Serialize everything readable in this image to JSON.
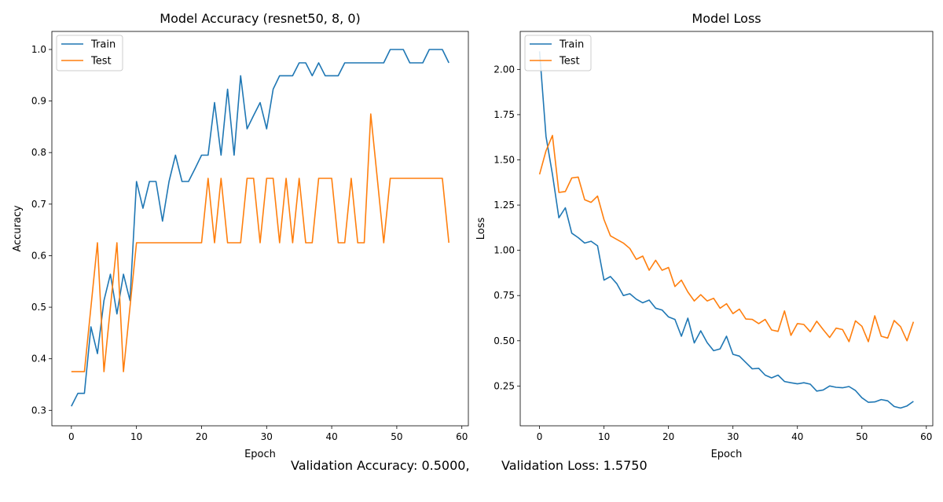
{
  "footer": {
    "val_acc": "Validation Accuracy: 0.5000,",
    "val_loss": "Validation Loss: 1.5750"
  },
  "chart_data": [
    {
      "type": "line",
      "title": "Model Accuracy (resnet50, 8, 0)",
      "xlabel": "Epoch",
      "ylabel": "Accuracy",
      "xlim": [
        -3,
        61
      ],
      "ylim": [
        0.27,
        1.035
      ],
      "xticks": [
        0,
        10,
        20,
        30,
        40,
        50,
        60
      ],
      "yticks": [
        0.3,
        0.4,
        0.5,
        0.6,
        0.7,
        0.8,
        0.9,
        1.0
      ],
      "ytick_labels": [
        "0.3",
        "0.4",
        "0.5",
        "0.6",
        "0.7",
        "0.8",
        "0.9",
        "1.0"
      ],
      "legend": "top-left",
      "grid": false,
      "series": [
        {
          "name": "Train",
          "color": "#1f77b4",
          "values": [
            0.308,
            0.333,
            0.333,
            0.462,
            0.41,
            0.513,
            0.564,
            0.487,
            0.564,
            0.513,
            0.744,
            0.692,
            0.744,
            0.744,
            0.667,
            0.744,
            0.795,
            0.744,
            0.744,
            0.769,
            0.795,
            0.795,
            0.897,
            0.795,
            0.923,
            0.795,
            0.949,
            0.846,
            0.872,
            0.897,
            0.846,
            0.923,
            0.949,
            0.949,
            0.949,
            0.974,
            0.974,
            0.949,
            0.974,
            0.949,
            0.949,
            0.949,
            0.974,
            0.974,
            0.974,
            0.974,
            0.974,
            0.974,
            0.974,
            1.0,
            1.0,
            1.0,
            0.974,
            0.974,
            0.974,
            1.0,
            1.0,
            1.0,
            0.974
          ]
        },
        {
          "name": "Test",
          "color": "#ff7f0e",
          "values": [
            0.375,
            0.375,
            0.375,
            0.5,
            0.625,
            0.375,
            0.5,
            0.625,
            0.375,
            0.5,
            0.625,
            0.625,
            0.625,
            0.625,
            0.625,
            0.625,
            0.625,
            0.625,
            0.625,
            0.625,
            0.625,
            0.75,
            0.625,
            0.75,
            0.625,
            0.625,
            0.625,
            0.75,
            0.75,
            0.625,
            0.75,
            0.75,
            0.625,
            0.75,
            0.625,
            0.75,
            0.625,
            0.625,
            0.75,
            0.75,
            0.75,
            0.625,
            0.625,
            0.75,
            0.625,
            0.625,
            0.875,
            0.75,
            0.625,
            0.75,
            0.75,
            0.75,
            0.75,
            0.75,
            0.75,
            0.75,
            0.75,
            0.75,
            0.625
          ]
        }
      ]
    },
    {
      "type": "line",
      "title": "Model Loss",
      "xlabel": "Epoch",
      "ylabel": "Loss",
      "xlim": [
        -3,
        61
      ],
      "ylim": [
        0.03,
        2.21
      ],
      "xticks": [
        0,
        10,
        20,
        30,
        40,
        50,
        60
      ],
      "yticks": [
        0.25,
        0.5,
        0.75,
        1.0,
        1.25,
        1.5,
        1.75,
        2.0
      ],
      "ytick_labels": [
        "0.25",
        "0.50",
        "0.75",
        "1.00",
        "1.25",
        "1.50",
        "1.75",
        "2.00"
      ],
      "legend": "top-left",
      "grid": false,
      "series": [
        {
          "name": "Train",
          "color": "#1f77b4",
          "values": [
            2.1,
            1.63,
            1.42,
            1.18,
            1.235,
            1.095,
            1.07,
            1.04,
            1.05,
            1.025,
            0.835,
            0.855,
            0.815,
            0.75,
            0.76,
            0.73,
            0.71,
            0.725,
            0.68,
            0.67,
            0.632,
            0.618,
            0.525,
            0.625,
            0.488,
            0.555,
            0.49,
            0.445,
            0.455,
            0.525,
            0.425,
            0.415,
            0.38,
            0.345,
            0.348,
            0.31,
            0.295,
            0.31,
            0.275,
            0.268,
            0.262,
            0.268,
            0.26,
            0.222,
            0.228,
            0.25,
            0.243,
            0.24,
            0.247,
            0.225,
            0.185,
            0.16,
            0.162,
            0.175,
            0.168,
            0.137,
            0.128,
            0.14,
            0.165
          ]
        },
        {
          "name": "Test",
          "color": "#ff7f0e",
          "values": [
            1.42,
            1.55,
            1.635,
            1.32,
            1.325,
            1.4,
            1.405,
            1.28,
            1.265,
            1.3,
            1.17,
            1.08,
            1.06,
            1.04,
            1.01,
            0.95,
            0.968,
            0.89,
            0.945,
            0.89,
            0.905,
            0.8,
            0.835,
            0.77,
            0.72,
            0.755,
            0.72,
            0.735,
            0.68,
            0.705,
            0.65,
            0.675,
            0.62,
            0.618,
            0.595,
            0.618,
            0.56,
            0.552,
            0.665,
            0.53,
            0.595,
            0.59,
            0.55,
            0.608,
            0.562,
            0.518,
            0.57,
            0.562,
            0.495,
            0.61,
            0.58,
            0.495,
            0.638,
            0.525,
            0.515,
            0.612,
            0.578,
            0.5,
            0.605
          ]
        }
      ]
    }
  ]
}
